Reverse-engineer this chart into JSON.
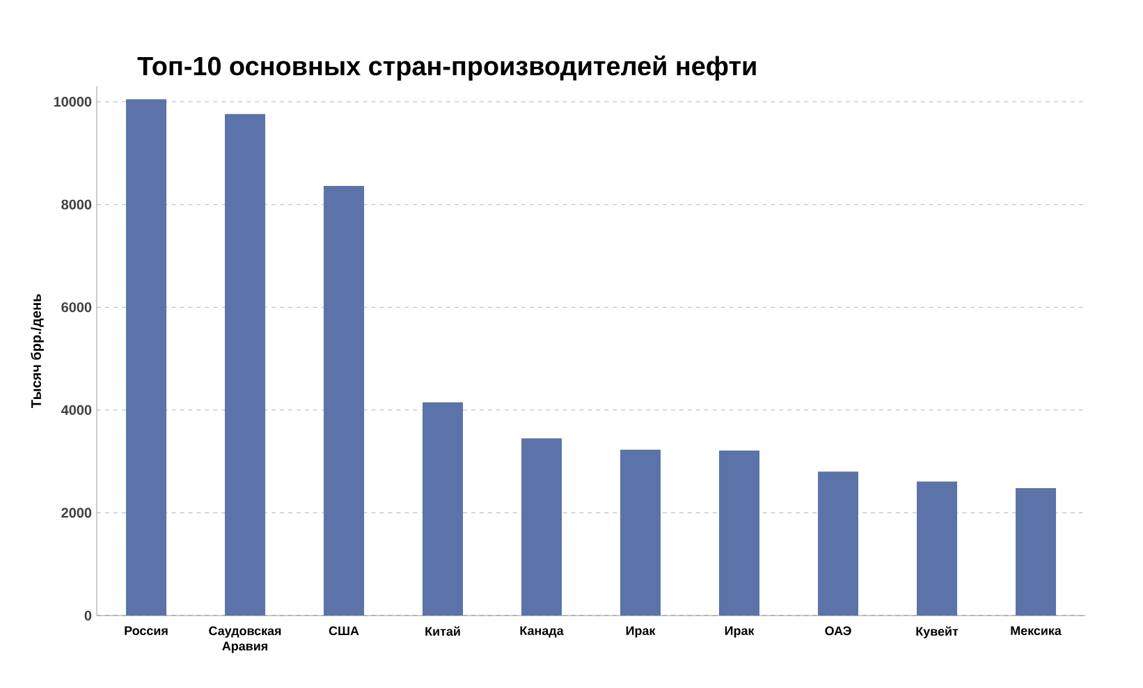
{
  "chart_data": {
    "type": "bar",
    "title": "Топ-10 основных стран-производителей нефти",
    "ylabel": "Тысяч брр./день",
    "categories": [
      "Россия",
      "Саудовская Аравия",
      "США",
      "Китай",
      "Канада",
      "Ирак",
      "Ирак",
      "ОАЭ",
      "Кувейт",
      "Мексика"
    ],
    "values": [
      10050,
      9760,
      8360,
      4150,
      3450,
      3230,
      3210,
      2800,
      2610,
      2480
    ],
    "color": "#5b73a8",
    "ylim": [
      0,
      10300
    ],
    "yticks": [
      0,
      2000,
      4000,
      6000,
      8000,
      10000
    ],
    "grid": "y"
  }
}
